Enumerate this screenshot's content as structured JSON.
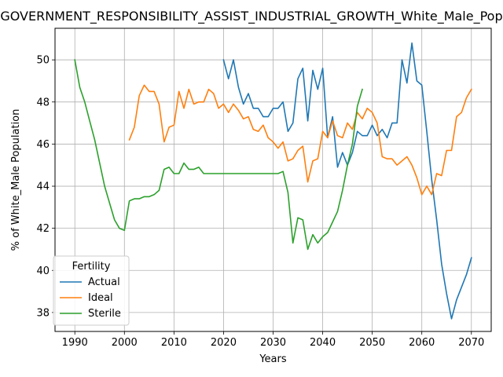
{
  "chart_data": {
    "type": "line",
    "title": "GOVERNMENT_RESPONSIBILITY_ASSIST_INDUSTRIAL_GROWTH_White_Male_Population",
    "xlabel": "Years",
    "ylabel": "% of White_Male Population",
    "xlim": [
      1986,
      2074
    ],
    "ylim": [
      37.1,
      51.5
    ],
    "xticks": [
      1990,
      2000,
      2010,
      2020,
      2030,
      2040,
      2050,
      2060,
      2070
    ],
    "yticks": [
      38,
      40,
      42,
      44,
      46,
      48,
      50
    ],
    "grid": true,
    "legend": {
      "title": "Fertility",
      "placement": "lower-left"
    },
    "series": [
      {
        "name": "Actual",
        "color": "#1f77b4",
        "x": [
          2020,
          2021,
          2022,
          2023,
          2024,
          2025,
          2026,
          2027,
          2028,
          2029,
          2030,
          2031,
          2032,
          2033,
          2034,
          2035,
          2036,
          2037,
          2038,
          2039,
          2040,
          2041,
          2042,
          2043,
          2044,
          2045,
          2046,
          2047,
          2048,
          2049,
          2050,
          2051,
          2052,
          2053,
          2054,
          2055,
          2056,
          2057,
          2058,
          2059,
          2060,
          2061,
          2062,
          2063,
          2064,
          2065,
          2066,
          2067,
          2068,
          2069,
          2070
        ],
        "values": [
          50.0,
          49.1,
          50.0,
          48.7,
          47.9,
          48.4,
          47.7,
          47.7,
          47.3,
          47.3,
          47.7,
          47.7,
          48.0,
          46.6,
          47.0,
          49.1,
          49.6,
          47.1,
          49.5,
          48.6,
          49.6,
          46.3,
          47.3,
          44.9,
          45.6,
          45.0,
          45.6,
          46.6,
          46.4,
          46.4,
          46.9,
          46.4,
          46.7,
          46.3,
          47.0,
          47.0,
          50.0,
          48.9,
          50.8,
          49.0,
          48.8,
          46.6,
          44.3,
          42.4,
          40.3,
          38.9,
          37.7,
          38.6,
          39.2,
          39.8,
          40.6
        ]
      },
      {
        "name": "Ideal",
        "color": "#ff7f0e",
        "x": [
          2001,
          2002,
          2003,
          2004,
          2005,
          2006,
          2007,
          2008,
          2009,
          2010,
          2011,
          2012,
          2013,
          2014,
          2015,
          2016,
          2017,
          2018,
          2019,
          2020,
          2021,
          2022,
          2023,
          2024,
          2025,
          2026,
          2027,
          2028,
          2029,
          2030,
          2031,
          2032,
          2033,
          2034,
          2035,
          2036,
          2037,
          2038,
          2039,
          2040,
          2041,
          2042,
          2043,
          2044,
          2045,
          2046,
          2047,
          2048,
          2049,
          2050,
          2051,
          2052,
          2053,
          2054,
          2055,
          2056,
          2057,
          2058,
          2059,
          2060,
          2061,
          2062,
          2063,
          2064,
          2065,
          2066,
          2067,
          2068,
          2069,
          2070
        ],
        "values": [
          46.2,
          46.8,
          48.3,
          48.8,
          48.5,
          48.5,
          47.9,
          46.1,
          46.8,
          46.9,
          48.5,
          47.7,
          48.6,
          47.9,
          48.0,
          48.0,
          48.6,
          48.4,
          47.7,
          47.9,
          47.5,
          47.9,
          47.6,
          47.2,
          47.3,
          46.7,
          46.6,
          46.9,
          46.3,
          46.1,
          45.8,
          46.1,
          45.2,
          45.3,
          45.7,
          45.9,
          44.2,
          45.2,
          45.3,
          46.6,
          46.3,
          47.1,
          46.4,
          46.3,
          47.0,
          46.7,
          47.5,
          47.2,
          47.7,
          47.5,
          47.0,
          45.4,
          45.3,
          45.3,
          45.0,
          45.2,
          45.4,
          45.0,
          44.4,
          43.6,
          44.0,
          43.6,
          44.6,
          44.5,
          45.7,
          45.7,
          47.3,
          47.5,
          48.2,
          48.6
        ]
      },
      {
        "name": "Sterile",
        "color": "#2ca02c",
        "x": [
          1990,
          1991,
          1992,
          1993,
          1994,
          1995,
          1996,
          1997,
          1998,
          1999,
          2000,
          2001,
          2002,
          2003,
          2004,
          2005,
          2006,
          2007,
          2008,
          2009,
          2010,
          2011,
          2012,
          2013,
          2014,
          2015,
          2016,
          2017,
          2018,
          2019,
          2020,
          2021,
          2022,
          2023,
          2024,
          2025,
          2026,
          2027,
          2028,
          2029,
          2030,
          2031,
          2032,
          2033,
          2034,
          2035,
          2036,
          2037,
          2038,
          2039,
          2040,
          2041,
          2042,
          2043,
          2044,
          2045,
          2046,
          2047,
          2048
        ],
        "values": [
          50.0,
          48.7,
          48.0,
          47.1,
          46.2,
          45.1,
          44.0,
          43.2,
          42.4,
          42.0,
          41.9,
          43.3,
          43.4,
          43.4,
          43.5,
          43.5,
          43.6,
          43.8,
          44.8,
          44.9,
          44.6,
          44.6,
          45.1,
          44.8,
          44.8,
          44.9,
          44.6,
          44.6,
          44.6,
          44.6,
          44.6,
          44.6,
          44.6,
          44.6,
          44.6,
          44.6,
          44.6,
          44.6,
          44.6,
          44.6,
          44.6,
          44.6,
          44.7,
          43.7,
          41.3,
          42.5,
          42.4,
          41.0,
          41.7,
          41.3,
          41.6,
          41.8,
          42.3,
          42.8,
          43.8,
          45.0,
          46.0,
          47.8,
          48.6
        ]
      }
    ]
  }
}
